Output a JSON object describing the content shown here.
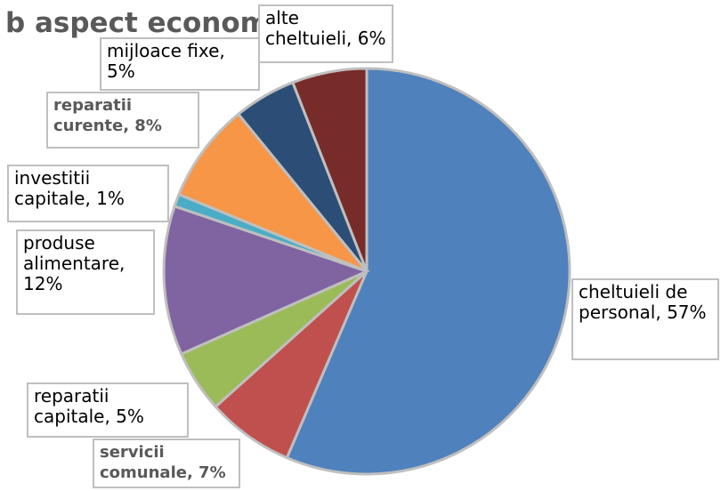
{
  "chart_data": {
    "type": "pie",
    "title": "b aspect economic",
    "labels": [
      "cheltuieli de personal, 57%",
      "servicii comunale, 7%",
      "reparatii capitale, 5%",
      "produse alimentare, 12%",
      "investitii capitale, 1%",
      "reparatii curente, 8%",
      "mijloace fixe, 5%",
      "alte cheltuieli, 6%"
    ],
    "values": [
      57,
      7,
      5,
      12,
      1,
      8,
      5,
      6
    ],
    "colors": [
      "#4f81bd",
      "#c0504d",
      "#9bbb59",
      "#8064a2",
      "#4bacc6",
      "#f79646",
      "#2c4d75",
      "#772c2a"
    ],
    "bold_labels": [
      false,
      true,
      false,
      false,
      false,
      true,
      false,
      false
    ]
  }
}
